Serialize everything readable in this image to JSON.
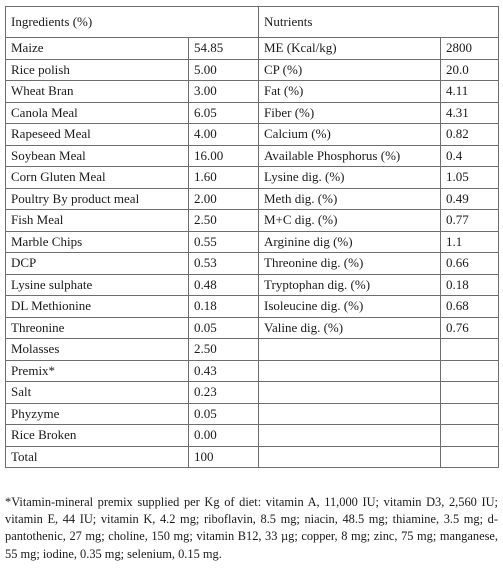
{
  "table": {
    "headers": {
      "ingredients": "Ingredients (%)",
      "nutrients": "Nutrients"
    },
    "rows": [
      {
        "ingredient": "Maize",
        "amount": "54.85",
        "nutrient": "ME (Kcal/kg)",
        "value": "2800"
      },
      {
        "ingredient": "Rice polish",
        "amount": "5.00",
        "nutrient": "CP (%)",
        "value": "20.0"
      },
      {
        "ingredient": "Wheat Bran",
        "amount": "3.00",
        "nutrient": "Fat (%)",
        "value": "4.11"
      },
      {
        "ingredient": "Canola Meal",
        "amount": "6.05",
        "nutrient": "Fiber (%)",
        "value": "4.31"
      },
      {
        "ingredient": "Rapeseed Meal",
        "amount": "4.00",
        "nutrient": "Calcium (%)",
        "value": "0.82"
      },
      {
        "ingredient": "Soybean Meal",
        "amount": "16.00",
        "nutrient": "Available Phosphorus (%)",
        "value": "0.4"
      },
      {
        "ingredient": "Corn Gluten Meal",
        "amount": "1.60",
        "nutrient": "Lysine dig. (%)",
        "value": "1.05"
      },
      {
        "ingredient": "Poultry By product meal",
        "amount": "2.00",
        "nutrient": "Meth dig. (%)",
        "value": "0.49"
      },
      {
        "ingredient": "Fish Meal",
        "amount": "2.50",
        "nutrient": "M+C dig. (%)",
        "value": "0.77"
      },
      {
        "ingredient": "Marble Chips",
        "amount": "0.55",
        "nutrient": "Arginine dig (%)",
        "value": "1.1"
      },
      {
        "ingredient": "DCP",
        "amount": "0.53",
        "nutrient": "Threonine dig. (%)",
        "value": "0.66"
      },
      {
        "ingredient": "Lysine sulphate",
        "amount": "0.48",
        "nutrient": "Tryptophan dig. (%)",
        "value": "0.18"
      },
      {
        "ingredient": "DL Methionine",
        "amount": "0.18",
        "nutrient": "Isoleucine dig. (%)",
        "value": "0.68"
      },
      {
        "ingredient": "Threonine",
        "amount": "0.05",
        "nutrient": "Valine dig. (%)",
        "value": "0.76"
      },
      {
        "ingredient": "Molasses",
        "amount": "2.50",
        "nutrient": "",
        "value": ""
      },
      {
        "ingredient": "Premix*",
        "amount": "0.43",
        "nutrient": "",
        "value": ""
      },
      {
        "ingredient": "Salt",
        "amount": "0.23",
        "nutrient": "",
        "value": ""
      },
      {
        "ingredient": "Phyzyme",
        "amount": "0.05",
        "nutrient": "",
        "value": ""
      },
      {
        "ingredient": "Rice Broken",
        "amount": "0.00",
        "nutrient": "",
        "value": ""
      },
      {
        "ingredient": "Total",
        "amount": "100",
        "nutrient": "",
        "value": ""
      }
    ]
  },
  "footnote": "*Vitamin-mineral premix supplied per Kg of diet: vitamin A, 11,000 IU; vitamin D3, 2,560 IU; vitamin E, 44 IU; vitamin K, 4.2 mg; riboflavin, 8.5 mg; niacin, 48.5 mg; thiamine, 3.5 mg; d-pantothenic, 27 mg; choline, 150 mg; vitamin B12, 33 µg; copper, 8 mg; zinc, 75 mg; manganese, 55 mg; iodine, 0.35 mg; selenium, 0.15 mg."
}
